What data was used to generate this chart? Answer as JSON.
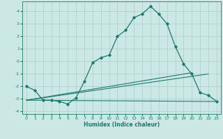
{
  "title": "",
  "xlabel": "Humidex (Indice chaleur)",
  "ylabel": "",
  "xlim": [
    -0.5,
    23.5
  ],
  "ylim": [
    -4.2,
    4.8
  ],
  "xticks": [
    0,
    1,
    2,
    3,
    4,
    5,
    6,
    7,
    8,
    9,
    10,
    11,
    12,
    13,
    14,
    15,
    16,
    17,
    18,
    19,
    20,
    21,
    22,
    23
  ],
  "yticks": [
    -4,
    -3,
    -2,
    -1,
    0,
    1,
    2,
    3,
    4
  ],
  "background_color": "#cce8e4",
  "grid_color": "#aaccca",
  "line_color": "#1a7a6e",
  "lines": [
    {
      "x": [
        0,
        1,
        2,
        3,
        4,
        5,
        6,
        7,
        8,
        9,
        10,
        11,
        12,
        13,
        14,
        15,
        16,
        17,
        18,
        19,
        20,
        21,
        22,
        23
      ],
      "y": [
        -2.0,
        -2.3,
        -3.1,
        -3.1,
        -3.2,
        -3.4,
        -2.9,
        -1.6,
        -0.1,
        0.3,
        0.5,
        2.0,
        2.5,
        3.5,
        3.8,
        4.4,
        3.8,
        3.0,
        1.2,
        -0.2,
        -1.0,
        -2.5,
        -2.7,
        -3.2
      ],
      "marker": "D",
      "markersize": 1.8,
      "linewidth": 0.9
    },
    {
      "x": [
        0,
        23
      ],
      "y": [
        -3.1,
        -3.2
      ],
      "marker": null,
      "linewidth": 0.8
    },
    {
      "x": [
        0,
        20
      ],
      "y": [
        -3.1,
        -0.9
      ],
      "marker": null,
      "linewidth": 0.8
    },
    {
      "x": [
        0,
        22
      ],
      "y": [
        -3.1,
        -1.0
      ],
      "marker": null,
      "linewidth": 0.8
    }
  ]
}
